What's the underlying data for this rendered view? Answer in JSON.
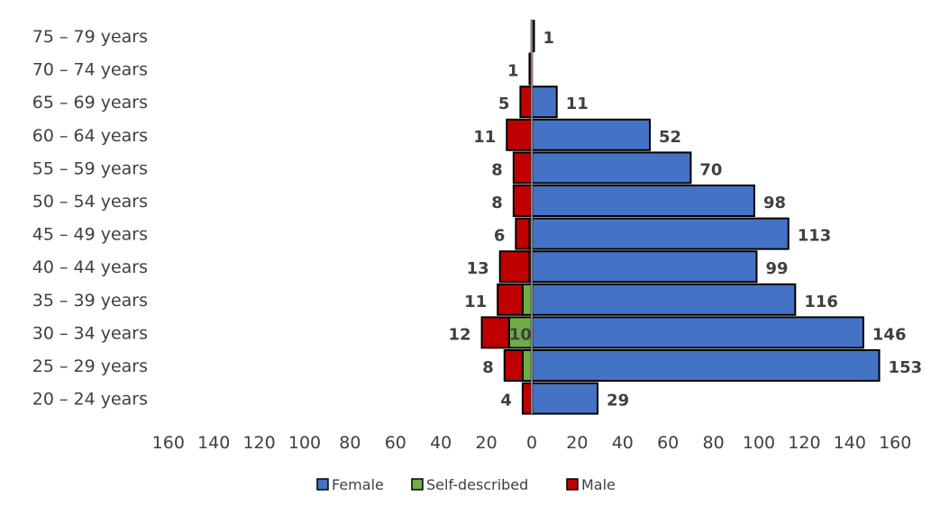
{
  "chart_data": {
    "type": "bar",
    "orientation": "horizontal-population-pyramid",
    "categories": [
      "75 – 79 years",
      "70 – 74 years",
      "65 – 69 years",
      "60 – 64 years",
      "55 – 59 years",
      "50 – 54 years",
      "45 – 49 years",
      "40 – 44 years",
      "35 – 39 years",
      "30 – 34 years",
      "25 – 29 years",
      "20 – 24 years"
    ],
    "series": [
      {
        "name": "Female",
        "side": "right",
        "color": "#4472C4",
        "values": [
          1,
          0,
          11,
          52,
          70,
          98,
          113,
          99,
          116,
          146,
          153,
          29
        ]
      },
      {
        "name": "Self-described",
        "side": "left",
        "color": "#70AD47",
        "values": [
          0,
          0,
          0,
          0,
          0,
          0,
          1,
          1,
          4,
          10,
          4,
          0
        ]
      },
      {
        "name": "Male",
        "side": "left",
        "color": "#C00000",
        "values": [
          0,
          1,
          5,
          11,
          8,
          8,
          6,
          13,
          11,
          12,
          8,
          4
        ]
      }
    ],
    "data_labels": {
      "left": [
        "",
        "1",
        "5",
        "11",
        "8",
        "8",
        "6",
        "13",
        "11",
        "12",
        "8",
        "4"
      ],
      "self": [
        "",
        "",
        "",
        "",
        "",
        "",
        "",
        "",
        "",
        "10",
        "",
        ""
      ],
      "right": [
        "1",
        "",
        "11",
        "52",
        "70",
        "98",
        "113",
        "99",
        "116",
        "146",
        "153",
        "29"
      ]
    },
    "x_ticks": [
      "160",
      "140",
      "120",
      "100",
      "80",
      "60",
      "40",
      "20",
      "0",
      "20",
      "40",
      "60",
      "80",
      "100",
      "120",
      "140",
      "160"
    ],
    "xlim": [
      -160,
      160
    ],
    "grid": false,
    "legend": [
      "Female",
      "Self-described",
      "Male"
    ],
    "legend_position": "bottom"
  }
}
